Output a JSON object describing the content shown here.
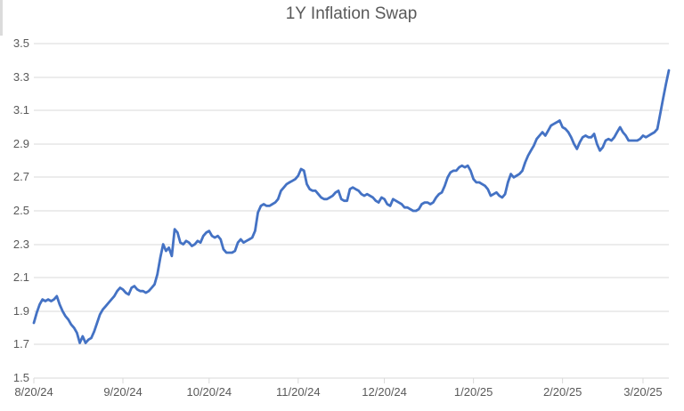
{
  "page": {
    "background": "#FFFFFF"
  },
  "chart_data": {
    "type": "line",
    "title": "1Y Inflation Swap",
    "series_name": "1Y Inflation Swap",
    "xlabel": "",
    "ylabel": "",
    "legend": false,
    "grid": true,
    "x_tick_labels": [
      "8/20/24",
      "9/20/24",
      "10/20/24",
      "11/20/24",
      "12/20/24",
      "1/20/25",
      "2/20/25",
      "3/20/25"
    ],
    "x_tick_days": [
      0,
      31,
      61,
      92,
      122,
      153,
      184,
      212
    ],
    "x_unit": "days since 8/20/24",
    "x_range_days": [
      0,
      221
    ],
    "ylim": [
      1.5,
      3.5
    ],
    "y_ticks": [
      1.5,
      1.7,
      1.9,
      2.1,
      2.3,
      2.5,
      2.7,
      2.9,
      3.1,
      3.3,
      3.5
    ],
    "line_color": "#4472C4",
    "gridline_color": "#D9D9D9",
    "axis_color": "#D9D9D9",
    "label_color": "#595959",
    "title_color": "#595959",
    "values_start_day": 0,
    "values_day_step": 1,
    "values": [
      1.83,
      1.89,
      1.94,
      1.97,
      1.96,
      1.97,
      1.96,
      1.97,
      1.99,
      1.94,
      1.9,
      1.87,
      1.85,
      1.82,
      1.8,
      1.77,
      1.71,
      1.75,
      1.71,
      1.73,
      1.74,
      1.78,
      1.83,
      1.88,
      1.91,
      1.93,
      1.95,
      1.97,
      1.99,
      2.02,
      2.04,
      2.03,
      2.01,
      2.0,
      2.04,
      2.05,
      2.03,
      2.02,
      2.02,
      2.01,
      2.02,
      2.04,
      2.06,
      2.12,
      2.22,
      2.3,
      2.26,
      2.28,
      2.23,
      2.39,
      2.37,
      2.31,
      2.3,
      2.32,
      2.31,
      2.29,
      2.3,
      2.32,
      2.31,
      2.35,
      2.37,
      2.38,
      2.35,
      2.34,
      2.35,
      2.33,
      2.27,
      2.25,
      2.25,
      2.25,
      2.26,
      2.31,
      2.33,
      2.31,
      2.32,
      2.33,
      2.34,
      2.38,
      2.49,
      2.53,
      2.54,
      2.53,
      2.53,
      2.54,
      2.55,
      2.57,
      2.62,
      2.64,
      2.66,
      2.67,
      2.68,
      2.69,
      2.71,
      2.75,
      2.74,
      2.66,
      2.63,
      2.62,
      2.62,
      2.6,
      2.58,
      2.57,
      2.57,
      2.58,
      2.59,
      2.61,
      2.62,
      2.57,
      2.56,
      2.56,
      2.63,
      2.64,
      2.63,
      2.62,
      2.6,
      2.59,
      2.6,
      2.59,
      2.58,
      2.56,
      2.55,
      2.58,
      2.57,
      2.54,
      2.53,
      2.57,
      2.56,
      2.55,
      2.54,
      2.52,
      2.52,
      2.51,
      2.5,
      2.5,
      2.51,
      2.54,
      2.55,
      2.55,
      2.54,
      2.55,
      2.58,
      2.6,
      2.61,
      2.65,
      2.7,
      2.73,
      2.74,
      2.74,
      2.76,
      2.77,
      2.76,
      2.77,
      2.74,
      2.69,
      2.67,
      2.67,
      2.66,
      2.65,
      2.63,
      2.59,
      2.6,
      2.61,
      2.59,
      2.58,
      2.6,
      2.67,
      2.72,
      2.7,
      2.71,
      2.72,
      2.74,
      2.79,
      2.83,
      2.86,
      2.89,
      2.93,
      2.95,
      2.97,
      2.95,
      2.98,
      3.01,
      3.02,
      3.03,
      3.04,
      3.0,
      2.99,
      2.97,
      2.94,
      2.9,
      2.87,
      2.91,
      2.94,
      2.95,
      2.94,
      2.94,
      2.96,
      2.9,
      2.86,
      2.88,
      2.92,
      2.93,
      2.92,
      2.94,
      2.97,
      3.0,
      2.97,
      2.95,
      2.92,
      2.92,
      2.92,
      2.92,
      2.93,
      2.95,
      2.94,
      2.95,
      2.96,
      2.97,
      2.99,
      3.08,
      3.17,
      3.26,
      3.34
    ]
  }
}
